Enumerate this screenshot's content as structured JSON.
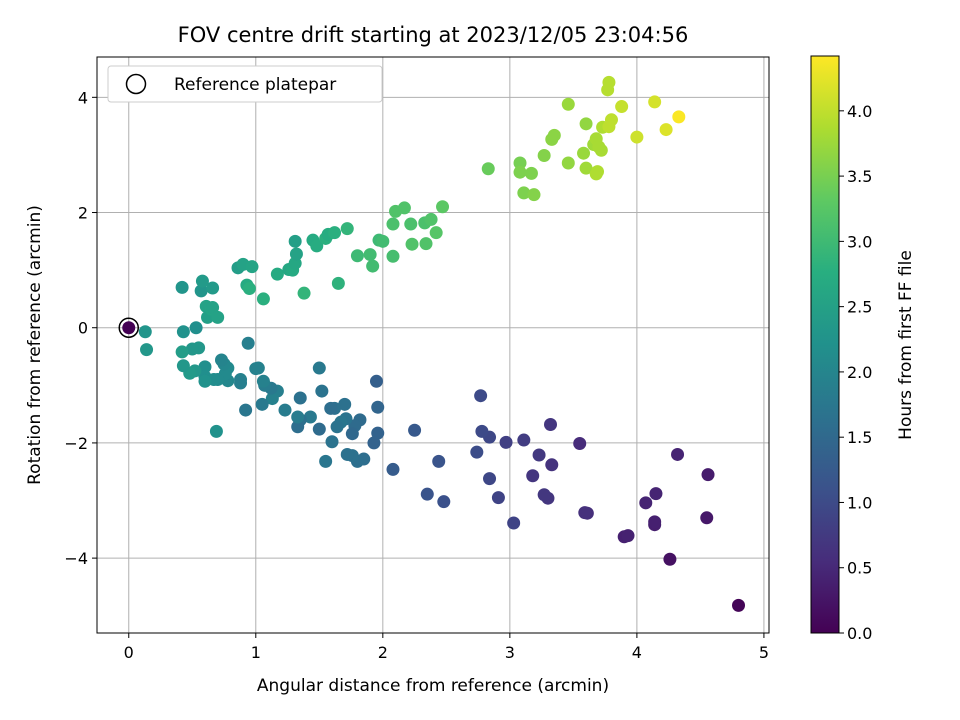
{
  "chart_data": {
    "type": "scatter",
    "title": "FOV centre drift starting at 2023/12/05 23:04:56",
    "xlabel": "Angular distance from reference (arcmin)",
    "ylabel": "Rotation from reference (arcmin)",
    "xlim": [
      -0.25,
      5.04
    ],
    "ylim": [
      -5.3,
      4.7
    ],
    "xticks": [
      0,
      1,
      2,
      3,
      4,
      5
    ],
    "yticks": [
      -4,
      -2,
      0,
      2,
      4
    ],
    "grid": true,
    "colormap": "viridis",
    "colorbar": {
      "label": "Hours from first FF file",
      "range": [
        0.0,
        4.42
      ],
      "ticks": [
        "0.0",
        "0.5",
        "1.0",
        "1.5",
        "2.0",
        "2.5",
        "3.0",
        "3.5",
        "4.0"
      ]
    },
    "legend": {
      "position": "top-left",
      "entries": [
        "Reference platepar"
      ]
    },
    "reference_point": {
      "x": 0,
      "y": 0
    },
    "points": [
      {
        "x": 4.8,
        "y": -4.82,
        "t": 0.05
      },
      {
        "x": 4.26,
        "y": -4.02,
        "t": 0.2
      },
      {
        "x": 3.9,
        "y": -3.63,
        "t": 0.4
      },
      {
        "x": 3.93,
        "y": -3.61,
        "t": 0.42
      },
      {
        "x": 4.55,
        "y": -3.3,
        "t": 0.3
      },
      {
        "x": 4.14,
        "y": -3.42,
        "t": 0.38
      },
      {
        "x": 4.14,
        "y": -3.37,
        "t": 0.4
      },
      {
        "x": 4.07,
        "y": -3.04,
        "t": 0.45
      },
      {
        "x": 4.15,
        "y": -2.88,
        "t": 0.45
      },
      {
        "x": 4.56,
        "y": -2.55,
        "t": 0.35
      },
      {
        "x": 4.32,
        "y": -2.2,
        "t": 0.45
      },
      {
        "x": 3.61,
        "y": -3.22,
        "t": 0.6
      },
      {
        "x": 3.59,
        "y": -3.21,
        "t": 0.62
      },
      {
        "x": 3.55,
        "y": -2.01,
        "t": 0.55
      },
      {
        "x": 3.3,
        "y": -2.96,
        "t": 0.7
      },
      {
        "x": 3.27,
        "y": -2.9,
        "t": 0.72
      },
      {
        "x": 3.33,
        "y": -2.38,
        "t": 0.65
      },
      {
        "x": 3.18,
        "y": -2.57,
        "t": 0.7
      },
      {
        "x": 3.23,
        "y": -2.21,
        "t": 0.75
      },
      {
        "x": 3.32,
        "y": -1.68,
        "t": 0.7
      },
      {
        "x": 3.11,
        "y": -1.95,
        "t": 0.8
      },
      {
        "x": 2.97,
        "y": -1.99,
        "t": 0.85
      },
      {
        "x": 3.03,
        "y": -3.39,
        "t": 0.9
      },
      {
        "x": 2.91,
        "y": -2.95,
        "t": 0.9
      },
      {
        "x": 2.84,
        "y": -2.62,
        "t": 0.95
      },
      {
        "x": 2.84,
        "y": -1.9,
        "t": 0.95
      },
      {
        "x": 2.78,
        "y": -1.8,
        "t": 1.0
      },
      {
        "x": 2.77,
        "y": -1.18,
        "t": 1.0
      },
      {
        "x": 2.74,
        "y": -2.16,
        "t": 1.05
      },
      {
        "x": 2.48,
        "y": -3.02,
        "t": 1.1
      },
      {
        "x": 2.44,
        "y": -2.32,
        "t": 1.15
      },
      {
        "x": 2.35,
        "y": -2.89,
        "t": 1.15
      },
      {
        "x": 2.25,
        "y": -1.78,
        "t": 1.25
      },
      {
        "x": 2.08,
        "y": -2.46,
        "t": 1.3
      },
      {
        "x": 1.96,
        "y": -1.83,
        "t": 1.4
      },
      {
        "x": 1.96,
        "y": -1.38,
        "t": 1.45
      },
      {
        "x": 1.95,
        "y": -0.93,
        "t": 1.35
      },
      {
        "x": 1.93,
        "y": -2.0,
        "t": 1.4
      },
      {
        "x": 1.85,
        "y": -2.28,
        "t": 1.6
      },
      {
        "x": 1.8,
        "y": -2.32,
        "t": 1.62
      },
      {
        "x": 1.76,
        "y": -2.22,
        "t": 1.65
      },
      {
        "x": 1.82,
        "y": -1.6,
        "t": 1.55
      },
      {
        "x": 1.78,
        "y": -1.7,
        "t": 1.55
      },
      {
        "x": 1.76,
        "y": -1.84,
        "t": 1.5
      },
      {
        "x": 1.72,
        "y": -2.2,
        "t": 1.65
      },
      {
        "x": 1.71,
        "y": -1.58,
        "t": 1.7
      },
      {
        "x": 1.7,
        "y": -1.33,
        "t": 1.65
      },
      {
        "x": 1.67,
        "y": -1.64,
        "t": 1.75
      },
      {
        "x": 1.64,
        "y": -1.72,
        "t": 1.7
      },
      {
        "x": 1.62,
        "y": -1.4,
        "t": 1.65
      },
      {
        "x": 1.6,
        "y": -1.98,
        "t": 1.7
      },
      {
        "x": 1.59,
        "y": -1.4,
        "t": 1.6
      },
      {
        "x": 1.55,
        "y": -2.32,
        "t": 1.75
      },
      {
        "x": 1.52,
        "y": -1.1,
        "t": 1.7
      },
      {
        "x": 1.5,
        "y": -0.7,
        "t": 1.8
      },
      {
        "x": 1.5,
        "y": -1.76,
        "t": 1.55
      },
      {
        "x": 1.43,
        "y": -1.55,
        "t": 1.8
      },
      {
        "x": 1.35,
        "y": -1.22,
        "t": 1.65
      },
      {
        "x": 1.35,
        "y": -1.6,
        "t": 1.65
      },
      {
        "x": 1.33,
        "y": -1.72,
        "t": 1.6
      },
      {
        "x": 1.33,
        "y": -1.55,
        "t": 1.85
      },
      {
        "x": 1.23,
        "y": -1.43,
        "t": 1.85
      },
      {
        "x": 1.17,
        "y": -1.1,
        "t": 1.9
      },
      {
        "x": 1.13,
        "y": -1.23,
        "t": 1.95
      },
      {
        "x": 1.12,
        "y": -1.05,
        "t": 1.8
      },
      {
        "x": 1.07,
        "y": -1.0,
        "t": 1.85
      },
      {
        "x": 1.06,
        "y": -0.93,
        "t": 1.95
      },
      {
        "x": 1.05,
        "y": -1.33,
        "t": 1.8
      },
      {
        "x": 1.02,
        "y": -0.7,
        "t": 1.95
      },
      {
        "x": 1.0,
        "y": -0.71,
        "t": 1.95
      },
      {
        "x": 0.94,
        "y": -0.27,
        "t": 1.9
      },
      {
        "x": 0.92,
        "y": -1.43,
        "t": 1.75
      },
      {
        "x": 0.88,
        "y": -0.9,
        "t": 1.95
      },
      {
        "x": 0.88,
        "y": -0.96,
        "t": 1.9
      },
      {
        "x": 0.78,
        "y": -0.92,
        "t": 2.05
      },
      {
        "x": 0.78,
        "y": -0.7,
        "t": 2.1
      },
      {
        "x": 0.76,
        "y": -0.8,
        "t": 2.1
      },
      {
        "x": 0.75,
        "y": -0.63,
        "t": 2.05
      },
      {
        "x": 0.73,
        "y": -0.56,
        "t": 2.0
      },
      {
        "x": 0.7,
        "y": -0.9,
        "t": 2.1
      },
      {
        "x": 0.69,
        "y": -1.8,
        "t": 2.25
      },
      {
        "x": 0.67,
        "y": -0.9,
        "t": 2.15
      },
      {
        "x": 0.6,
        "y": -0.68,
        "t": 2.2
      },
      {
        "x": 0.6,
        "y": -0.85,
        "t": 2.2
      },
      {
        "x": 0.6,
        "y": -0.93,
        "t": 2.25
      },
      {
        "x": 0.55,
        "y": -0.35,
        "t": 2.35
      },
      {
        "x": 0.5,
        "y": -0.37,
        "t": 2.35
      },
      {
        "x": 0.52,
        "y": -0.75,
        "t": 2.35
      },
      {
        "x": 0.48,
        "y": -0.79,
        "t": 2.4
      },
      {
        "x": 0.43,
        "y": -0.66,
        "t": 2.35
      },
      {
        "x": 0.42,
        "y": -0.42,
        "t": 2.45
      },
      {
        "x": 0.13,
        "y": -0.07,
        "t": 2.3
      },
      {
        "x": 0.14,
        "y": -0.38,
        "t": 2.35
      },
      {
        "x": 0.43,
        "y": -0.07,
        "t": 2.25
      },
      {
        "x": 0.53,
        "y": 0.0,
        "t": 2.2
      },
      {
        "x": 0.42,
        "y": 0.7,
        "t": 2.3
      },
      {
        "x": 0.57,
        "y": 0.64,
        "t": 2.3
      },
      {
        "x": 0.58,
        "y": 0.81,
        "t": 2.4
      },
      {
        "x": 0.66,
        "y": 0.69,
        "t": 2.4
      },
      {
        "x": 0.61,
        "y": 0.37,
        "t": 2.55
      },
      {
        "x": 0.62,
        "y": 0.18,
        "t": 2.5
      },
      {
        "x": 0.65,
        "y": 0.32,
        "t": 2.6
      },
      {
        "x": 0.66,
        "y": 0.35,
        "t": 2.55
      },
      {
        "x": 0.7,
        "y": 0.18,
        "t": 2.55
      },
      {
        "x": 0.86,
        "y": 1.04,
        "t": 2.45
      },
      {
        "x": 0.9,
        "y": 1.1,
        "t": 2.55
      },
      {
        "x": 0.97,
        "y": 1.06,
        "t": 2.6
      },
      {
        "x": 0.93,
        "y": 0.74,
        "t": 2.7
      },
      {
        "x": 0.95,
        "y": 0.68,
        "t": 2.8
      },
      {
        "x": 1.06,
        "y": 0.5,
        "t": 2.8
      },
      {
        "x": 1.17,
        "y": 0.93,
        "t": 2.7
      },
      {
        "x": 1.26,
        "y": 1.01,
        "t": 2.65
      },
      {
        "x": 1.29,
        "y": 1.0,
        "t": 2.7
      },
      {
        "x": 1.31,
        "y": 1.12,
        "t": 2.65
      },
      {
        "x": 1.32,
        "y": 1.28,
        "t": 2.55
      },
      {
        "x": 1.31,
        "y": 1.5,
        "t": 2.5
      },
      {
        "x": 1.38,
        "y": 0.6,
        "t": 2.9
      },
      {
        "x": 1.45,
        "y": 1.52,
        "t": 2.7
      },
      {
        "x": 1.48,
        "y": 1.42,
        "t": 2.75
      },
      {
        "x": 1.55,
        "y": 1.55,
        "t": 2.8
      },
      {
        "x": 1.57,
        "y": 1.62,
        "t": 2.75
      },
      {
        "x": 1.62,
        "y": 1.65,
        "t": 2.8
      },
      {
        "x": 1.65,
        "y": 0.77,
        "t": 2.85
      },
      {
        "x": 1.72,
        "y": 1.72,
        "t": 2.9
      },
      {
        "x": 1.8,
        "y": 1.25,
        "t": 3.0
      },
      {
        "x": 1.9,
        "y": 1.27,
        "t": 3.05
      },
      {
        "x": 1.92,
        "y": 1.07,
        "t": 3.05
      },
      {
        "x": 1.97,
        "y": 1.52,
        "t": 3.0
      },
      {
        "x": 2.0,
        "y": 1.5,
        "t": 3.05
      },
      {
        "x": 2.08,
        "y": 1.24,
        "t": 3.1
      },
      {
        "x": 2.08,
        "y": 1.8,
        "t": 3.15
      },
      {
        "x": 2.1,
        "y": 2.02,
        "t": 3.2
      },
      {
        "x": 2.17,
        "y": 2.08,
        "t": 3.2
      },
      {
        "x": 2.22,
        "y": 1.8,
        "t": 3.15
      },
      {
        "x": 2.23,
        "y": 1.45,
        "t": 3.2
      },
      {
        "x": 2.33,
        "y": 1.82,
        "t": 3.15
      },
      {
        "x": 2.34,
        "y": 1.46,
        "t": 3.2
      },
      {
        "x": 2.38,
        "y": 1.88,
        "t": 3.2
      },
      {
        "x": 2.42,
        "y": 1.65,
        "t": 3.25
      },
      {
        "x": 2.47,
        "y": 2.1,
        "t": 3.3
      },
      {
        "x": 2.83,
        "y": 2.76,
        "t": 3.4
      },
      {
        "x": 3.08,
        "y": 2.86,
        "t": 3.5
      },
      {
        "x": 3.08,
        "y": 2.7,
        "t": 3.55
      },
      {
        "x": 3.11,
        "y": 2.34,
        "t": 3.55
      },
      {
        "x": 3.17,
        "y": 2.68,
        "t": 3.55
      },
      {
        "x": 3.19,
        "y": 2.31,
        "t": 3.6
      },
      {
        "x": 3.27,
        "y": 2.99,
        "t": 3.6
      },
      {
        "x": 3.33,
        "y": 3.27,
        "t": 3.65
      },
      {
        "x": 3.35,
        "y": 3.34,
        "t": 3.65
      },
      {
        "x": 3.46,
        "y": 3.88,
        "t": 3.75
      },
      {
        "x": 3.46,
        "y": 2.86,
        "t": 3.7
      },
      {
        "x": 3.58,
        "y": 3.03,
        "t": 3.75
      },
      {
        "x": 3.6,
        "y": 3.54,
        "t": 3.7
      },
      {
        "x": 3.6,
        "y": 2.77,
        "t": 3.8
      },
      {
        "x": 3.66,
        "y": 3.18,
        "t": 3.8
      },
      {
        "x": 3.68,
        "y": 3.28,
        "t": 3.85
      },
      {
        "x": 3.68,
        "y": 2.67,
        "t": 3.9
      },
      {
        "x": 3.69,
        "y": 2.71,
        "t": 3.9
      },
      {
        "x": 3.7,
        "y": 3.14,
        "t": 3.85
      },
      {
        "x": 3.72,
        "y": 3.08,
        "t": 3.85
      },
      {
        "x": 3.73,
        "y": 3.48,
        "t": 3.9
      },
      {
        "x": 3.77,
        "y": 4.13,
        "t": 3.95
      },
      {
        "x": 3.78,
        "y": 4.26,
        "t": 3.95
      },
      {
        "x": 3.78,
        "y": 3.49,
        "t": 4.0
      },
      {
        "x": 3.8,
        "y": 3.61,
        "t": 4.0
      },
      {
        "x": 3.88,
        "y": 3.84,
        "t": 4.05
      },
      {
        "x": 4.0,
        "y": 3.31,
        "t": 4.1
      },
      {
        "x": 4.14,
        "y": 3.92,
        "t": 4.15
      },
      {
        "x": 4.23,
        "y": 3.44,
        "t": 4.2
      },
      {
        "x": 4.33,
        "y": 3.66,
        "t": 4.4
      },
      {
        "x": 0.0,
        "y": 0.0,
        "t": 0.0
      }
    ]
  }
}
